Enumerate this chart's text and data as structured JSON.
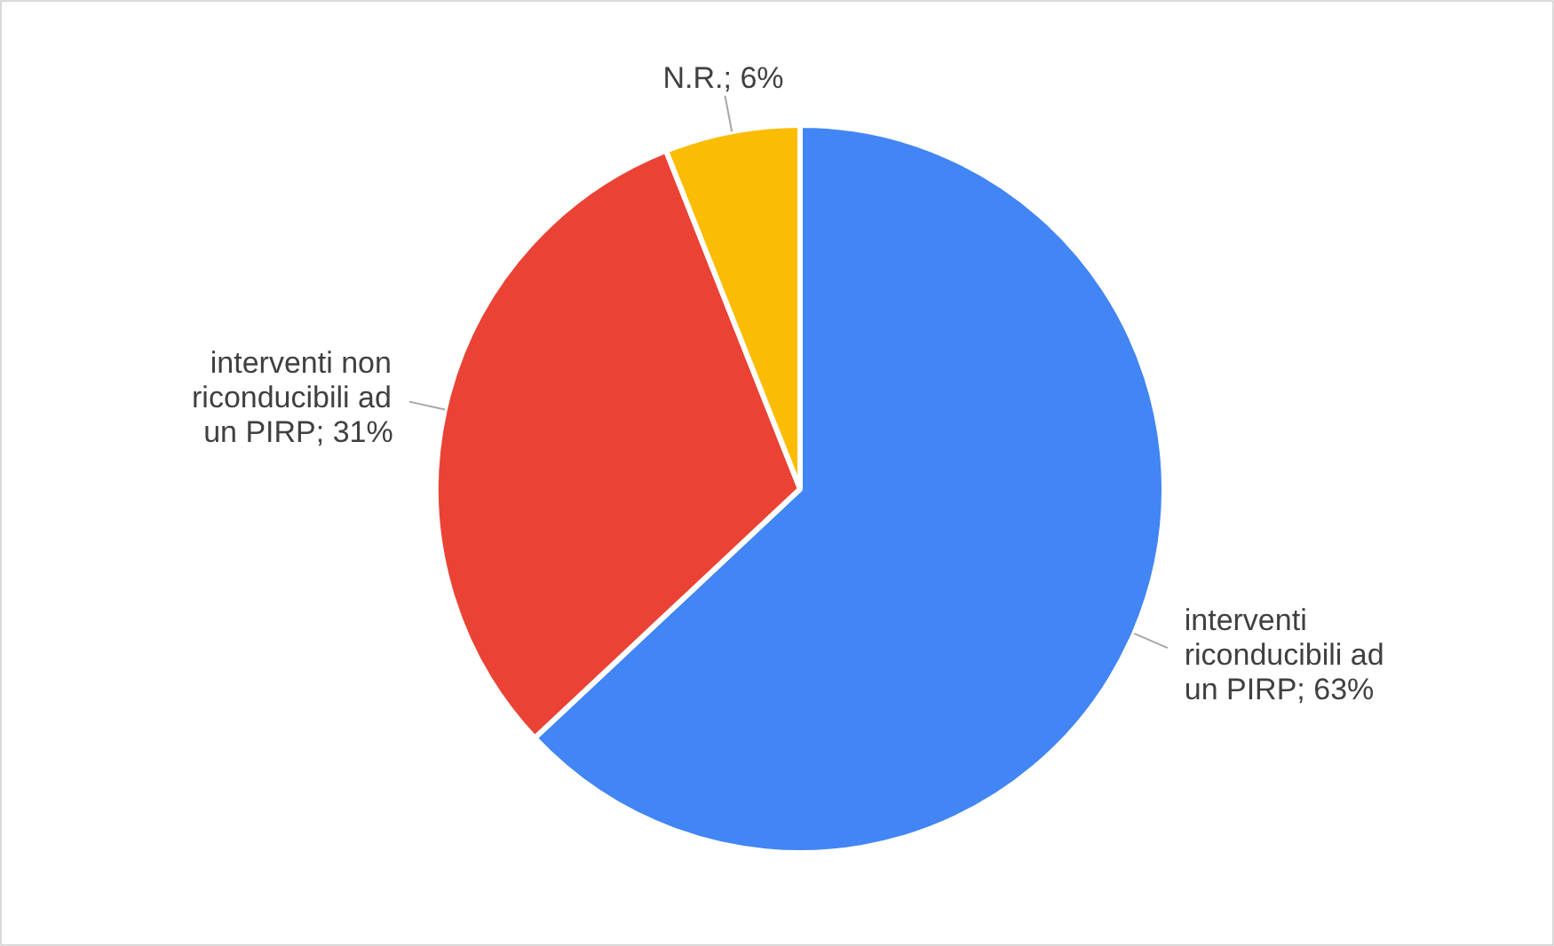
{
  "chart_data": {
    "type": "pie",
    "categories": [
      "interventi riconducibili ad un PIRP",
      "interventi non riconducibili ad un PIRP",
      "N.R."
    ],
    "values": [
      63,
      31,
      6
    ],
    "value_labels": [
      "63%",
      "31%",
      "6%"
    ],
    "colors": [
      "#4285f4",
      "#ea4335",
      "#fbbc04"
    ]
  }
}
